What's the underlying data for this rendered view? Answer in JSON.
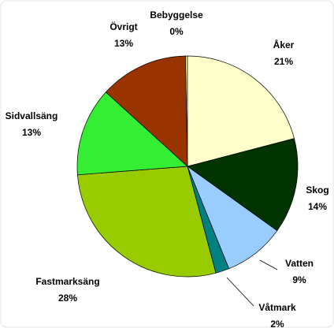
{
  "chart_data": {
    "type": "pie",
    "categories": [
      "Bebyggelse",
      "Åker",
      "Skog",
      "Vatten",
      "Våtmark",
      "Fastmarksäng",
      "Sidvallsäng",
      "Övrigt"
    ],
    "values": [
      0.3,
      21,
      14,
      9,
      2,
      28,
      13,
      13
    ],
    "value_labels": [
      "0%",
      "21%",
      "14%",
      "9%",
      "2%",
      "28%",
      "13%",
      "13%"
    ],
    "colors": [
      "#ffff99",
      "#ffffcc",
      "#003300",
      "#99ccff",
      "#008080",
      "#99cc00",
      "#33ee33",
      "#993300"
    ]
  }
}
